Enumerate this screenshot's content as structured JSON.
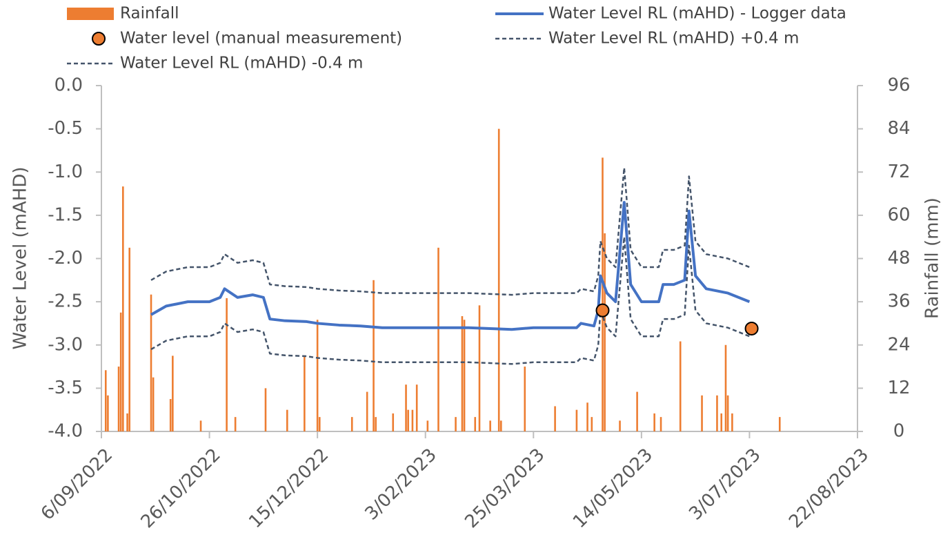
{
  "chart_data": {
    "type": "combo",
    "ylabel": "Water Level (mAHD)",
    "y2label": "Rainfall (mm)",
    "xlim": [
      "2022-09-06",
      "2023-08-22"
    ],
    "xticks": [
      {
        "value": "2022-09-06",
        "label": "6/09/2022"
      },
      {
        "value": "2022-10-26",
        "label": "26/10/2022"
      },
      {
        "value": "2022-12-15",
        "label": "15/12/2022"
      },
      {
        "value": "2023-02-03",
        "label": "3/02/2023"
      },
      {
        "value": "2023-03-25",
        "label": "25/03/2023"
      },
      {
        "value": "2023-05-14",
        "label": "14/05/2023"
      },
      {
        "value": "2023-07-03",
        "label": "3/07/2023"
      },
      {
        "value": "2023-08-22",
        "label": "22/08/2023"
      }
    ],
    "ylim": [
      -4,
      0
    ],
    "yticks": [
      {
        "value": 0,
        "label": "0.0"
      },
      -0.5,
      {
        "value": -1,
        "label": "-1.0"
      },
      -1.5,
      {
        "value": -2,
        "label": "-2.0"
      },
      -2.5,
      {
        "value": -3,
        "label": "-3.0"
      },
      -3.5,
      {
        "value": -4,
        "label": "-4.0"
      }
    ],
    "y2lim": [
      0,
      96
    ],
    "y2ticks": [
      0,
      12,
      24,
      36,
      48,
      60,
      72,
      84,
      96
    ],
    "series": [
      {
        "name": "Rainfall",
        "type": "bar",
        "axis": "y2",
        "color": "#ed7d31",
        "x": [
          "2022-09-08",
          "2022-09-09",
          "2022-09-14",
          "2022-09-15",
          "2022-09-16",
          "2022-09-18",
          "2022-09-19",
          "2022-09-29",
          "2022-09-30",
          "2022-10-08",
          "2022-10-09",
          "2022-10-22",
          "2022-11-03",
          "2022-11-07",
          "2022-11-21",
          "2022-12-01",
          "2022-12-09",
          "2022-12-15",
          "2022-12-16",
          "2022-12-31",
          "2023-01-07",
          "2023-01-10",
          "2023-01-11",
          "2023-01-19",
          "2023-01-25",
          "2023-01-26",
          "2023-01-28",
          "2023-01-30",
          "2023-02-04",
          "2023-02-09",
          "2023-02-17",
          "2023-02-20",
          "2023-02-21",
          "2023-02-26",
          "2023-02-28",
          "2023-03-05",
          "2023-03-09",
          "2023-03-10",
          "2023-03-21",
          "2023-04-04",
          "2023-04-14",
          "2023-04-19",
          "2023-04-21",
          "2023-04-26",
          "2023-04-27",
          "2023-05-04",
          "2023-05-12",
          "2023-05-20",
          "2023-05-23",
          "2023-06-01",
          "2023-06-11",
          "2023-06-18",
          "2023-06-20",
          "2023-06-22",
          "2023-06-23",
          "2023-06-25",
          "2023-07-17"
        ],
        "values": [
          17,
          10,
          18,
          33,
          68,
          5,
          51,
          38,
          15,
          9,
          21,
          3,
          37,
          4,
          12,
          6,
          21,
          31,
          4,
          4,
          11,
          42,
          4,
          5,
          13,
          6,
          6,
          13,
          3,
          51,
          4,
          32,
          31,
          4,
          35,
          3,
          84,
          3,
          18,
          7,
          6,
          8,
          4,
          76,
          55,
          3,
          11,
          5,
          4,
          25,
          10,
          10,
          5,
          24,
          10,
          5,
          4
        ]
      },
      {
        "name": "Water Level RL (mAHD) - Logger data",
        "type": "line",
        "color": "#4472c4",
        "x": [
          "2022-09-29",
          "2022-10-06",
          "2022-10-16",
          "2022-10-26",
          "2022-10-31",
          "2022-11-02",
          "2022-11-08",
          "2022-11-15",
          "2022-11-20",
          "2022-11-23",
          "2022-11-30",
          "2022-12-10",
          "2022-12-15",
          "2022-12-25",
          "2023-01-04",
          "2023-01-14",
          "2023-02-03",
          "2023-02-23",
          "2023-03-15",
          "2023-03-25",
          "2023-04-04",
          "2023-04-14",
          "2023-04-16",
          "2023-04-22",
          "2023-04-24",
          "2023-04-25",
          "2023-04-28",
          "2023-05-02",
          "2023-05-06",
          "2023-05-09",
          "2023-05-14",
          "2023-05-22",
          "2023-05-24",
          "2023-05-29",
          "2023-06-03",
          "2023-06-05",
          "2023-06-08",
          "2023-06-13",
          "2023-06-23",
          "2023-07-03"
        ],
        "values": [
          -2.65,
          -2.55,
          -2.5,
          -2.5,
          -2.45,
          -2.35,
          -2.45,
          -2.42,
          -2.45,
          -2.7,
          -2.72,
          -2.73,
          -2.75,
          -2.77,
          -2.78,
          -2.8,
          -2.8,
          -2.8,
          -2.82,
          -2.8,
          -2.8,
          -2.8,
          -2.75,
          -2.78,
          -2.6,
          -2.2,
          -2.4,
          -2.5,
          -1.35,
          -2.3,
          -2.5,
          -2.5,
          -2.3,
          -2.3,
          -2.25,
          -1.45,
          -2.2,
          -2.35,
          -2.4,
          -2.5
        ]
      },
      {
        "name": "Water level (manual measurement)",
        "type": "scatter",
        "color": "#ed7d31",
        "x": [
          "2023-04-26",
          "2023-07-04"
        ],
        "values": [
          -2.6,
          -2.81
        ]
      },
      {
        "name": "Water Level RL (mAHD) +0.4 m",
        "type": "line",
        "dash": true,
        "color": "#44546a",
        "x": [
          "2022-09-29",
          "2022-10-06",
          "2022-10-16",
          "2022-10-26",
          "2022-10-31",
          "2022-11-02",
          "2022-11-08",
          "2022-11-15",
          "2022-11-20",
          "2022-11-23",
          "2022-11-30",
          "2022-12-10",
          "2022-12-15",
          "2022-12-25",
          "2023-01-04",
          "2023-01-14",
          "2023-02-03",
          "2023-02-23",
          "2023-03-15",
          "2023-03-25",
          "2023-04-04",
          "2023-04-14",
          "2023-04-16",
          "2023-04-22",
          "2023-04-24",
          "2023-04-25",
          "2023-04-28",
          "2023-05-02",
          "2023-05-06",
          "2023-05-09",
          "2023-05-14",
          "2023-05-22",
          "2023-05-24",
          "2023-05-29",
          "2023-06-03",
          "2023-06-05",
          "2023-06-08",
          "2023-06-13",
          "2023-06-23",
          "2023-07-03"
        ],
        "values": [
          -2.25,
          -2.15,
          -2.1,
          -2.1,
          -2.05,
          -1.95,
          -2.05,
          -2.02,
          -2.05,
          -2.3,
          -2.32,
          -2.33,
          -2.35,
          -2.37,
          -2.38,
          -2.4,
          -2.4,
          -2.4,
          -2.42,
          -2.4,
          -2.4,
          -2.4,
          -2.35,
          -2.38,
          -2.2,
          -1.8,
          -2.0,
          -2.1,
          -0.95,
          -1.9,
          -2.1,
          -2.1,
          -1.9,
          -1.9,
          -1.85,
          -1.05,
          -1.8,
          -1.95,
          -2.0,
          -2.1
        ]
      },
      {
        "name": "Water Level RL (mAHD) -0.4 m",
        "type": "line",
        "dash": true,
        "color": "#44546a",
        "x": [
          "2022-09-29",
          "2022-10-06",
          "2022-10-16",
          "2022-10-26",
          "2022-10-31",
          "2022-11-02",
          "2022-11-08",
          "2022-11-15",
          "2022-11-20",
          "2022-11-23",
          "2022-11-30",
          "2022-12-10",
          "2022-12-15",
          "2022-12-25",
          "2023-01-04",
          "2023-01-14",
          "2023-02-03",
          "2023-02-23",
          "2023-03-15",
          "2023-03-25",
          "2023-04-04",
          "2023-04-14",
          "2023-04-16",
          "2023-04-22",
          "2023-04-24",
          "2023-04-25",
          "2023-04-28",
          "2023-05-02",
          "2023-05-06",
          "2023-05-09",
          "2023-05-14",
          "2023-05-22",
          "2023-05-24",
          "2023-05-29",
          "2023-06-03",
          "2023-06-05",
          "2023-06-08",
          "2023-06-13",
          "2023-06-23",
          "2023-07-03"
        ],
        "values": [
          -3.05,
          -2.95,
          -2.9,
          -2.9,
          -2.85,
          -2.75,
          -2.85,
          -2.82,
          -2.85,
          -3.1,
          -3.12,
          -3.13,
          -3.15,
          -3.17,
          -3.18,
          -3.2,
          -3.2,
          -3.2,
          -3.22,
          -3.2,
          -3.2,
          -3.2,
          -3.15,
          -3.18,
          -3.0,
          -2.6,
          -2.8,
          -2.9,
          -1.75,
          -2.7,
          -2.9,
          -2.9,
          -2.7,
          -2.7,
          -2.65,
          -1.85,
          -2.6,
          -2.75,
          -2.8,
          -2.9
        ]
      }
    ]
  }
}
